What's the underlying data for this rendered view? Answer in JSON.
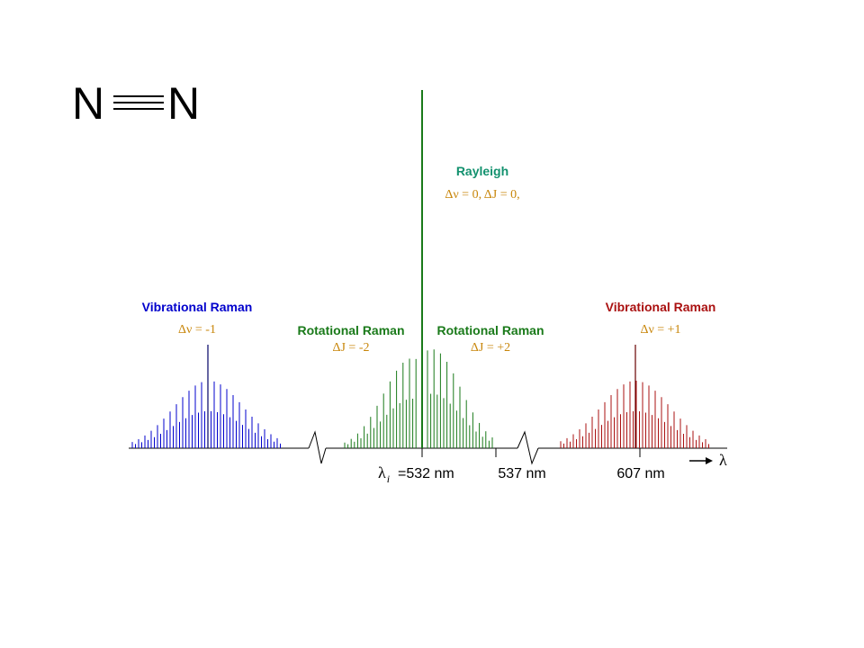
{
  "molecule": {
    "left_atom": "N",
    "right_atom": "N",
    "bond": "triple"
  },
  "colors": {
    "stokes": "#0000cc",
    "rotational": "#1a7a1a",
    "rayleigh": "#12916e",
    "anti_stokes": "#aa1111",
    "selection": "#c8860a",
    "axis": "#000000"
  },
  "labels": {
    "rayleigh_title": "Rayleigh",
    "rayleigh_rule": "Δν = 0,  ΔJ = 0,",
    "vib_left_title": "Vibrational Raman",
    "vib_left_rule": "Δν = -1",
    "rot_left_title": "Rotational Raman",
    "rot_left_rule": "ΔJ = -2",
    "rot_right_title": "Rotational Raman",
    "rot_right_rule": "ΔJ = +2",
    "vib_right_title": "Vibrational Raman",
    "vib_right_rule": "Δν = +1"
  },
  "axis": {
    "lambda_symbol": "λ",
    "lambda_sub": "i",
    "tick1": "=532 nm",
    "tick2": "537 nm",
    "tick3": "607 nm",
    "arrow_label": "λ"
  }
}
